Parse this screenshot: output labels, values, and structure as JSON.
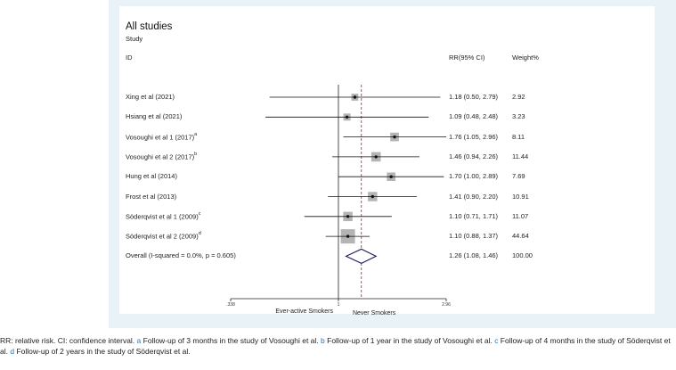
{
  "chart_data": {
    "type": "forest",
    "title": "All studies",
    "subtitle": "Study",
    "columns": {
      "id": "ID",
      "rr": "RR(95% CI)",
      "weight": "Weight%"
    },
    "studies": [
      {
        "label": "Xing et al  (2021)",
        "sup": "",
        "rr": 1.18,
        "lo": 0.5,
        "hi": 2.79,
        "ci_text": "1.18 (0.50, 2.79)",
        "weight": "2.92",
        "w": 2.92
      },
      {
        "label": "Hsiang et al (2021)",
        "sup": "",
        "rr": 1.09,
        "lo": 0.48,
        "hi": 2.48,
        "ci_text": "1.09 (0.48, 2.48)",
        "weight": "3.23",
        "w": 3.23
      },
      {
        "label": "Vosoughi et al 1 (2017)",
        "sup": "a",
        "rr": 1.76,
        "lo": 1.05,
        "hi": 2.96,
        "ci_text": "1.76 (1.05, 2.96)",
        "weight": "8.11",
        "w": 8.11
      },
      {
        "label": "Vosoughi et al 2 (2017)",
        "sup": "b",
        "rr": 1.46,
        "lo": 0.94,
        "hi": 2.26,
        "ci_text": "1.46 (0.94, 2.26)",
        "weight": "11.44",
        "w": 11.44
      },
      {
        "label": "Hung et al  (2014)",
        "sup": "",
        "rr": 1.7,
        "lo": 1.0,
        "hi": 2.89,
        "ci_text": "1.70 (1.00, 2.89)",
        "weight": "7.69",
        "w": 7.69
      },
      {
        "label": "Frost et al  (2013)",
        "sup": "",
        "rr": 1.41,
        "lo": 0.9,
        "hi": 2.2,
        "ci_text": "1.41 (0.90, 2.20)",
        "weight": "10.91",
        "w": 10.91
      },
      {
        "label": "Söderqvist et al 1 (2009)",
        "sup": "c",
        "rr": 1.1,
        "lo": 0.71,
        "hi": 1.71,
        "ci_text": "1.10 (0.71, 1.71)",
        "weight": "11.07",
        "w": 11.07
      },
      {
        "label": "Söderqvist et al 2 (2009)",
        "sup": "d",
        "rr": 1.1,
        "lo": 0.88,
        "hi": 1.37,
        "ci_text": "1.10 (0.88, 1.37)",
        "weight": "44.64",
        "w": 44.64
      }
    ],
    "overall": {
      "label": "Overall  (I-squared = 0.0%, p = 0.605)",
      "rr": 1.26,
      "lo": 1.08,
      "hi": 1.46,
      "ci_text": "1.26 (1.08, 1.46)",
      "weight": "100.00"
    },
    "x_axis": {
      "scale": "log",
      "range": [
        0.338,
        2.96
      ],
      "ticks": [
        {
          "value": 0.338,
          "label": ".338"
        },
        {
          "value": 1,
          "label": "1"
        },
        {
          "value": 2.96,
          "label": "2.96"
        }
      ],
      "left_label": "Ever-active Smokers",
      "right_label": "Never Smokers"
    },
    "colors": {
      "marker": "#b4b4b4",
      "ci_line": "#111111",
      "null_line": "#222222",
      "pooled_line": "#b22234",
      "diamond": "#1b1a5e",
      "panel_bg": "#e8f2f7"
    }
  },
  "caption": {
    "intro": "RR: relative risk. CI: confidence interval. ",
    "a_mark": "a",
    "a_text": " Follow-up of 3 months in the study of Vosoughi et al. ",
    "b_mark": "b",
    "b_text": " Follow-up of 1 year in the study of Vosoughi et al. ",
    "c_mark": "c",
    "c_text": " Follow-up of 4 months in the study of Söderqvist et al. ",
    "d_mark": "d",
    "d_text": " Follow-up of 2 years in the study of Söderqvist et al."
  }
}
